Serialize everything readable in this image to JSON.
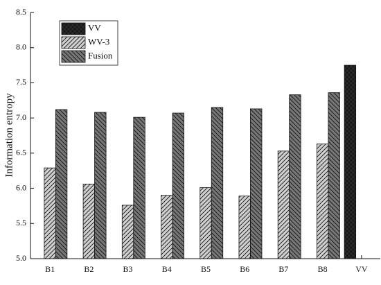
{
  "chart_data": {
    "type": "bar",
    "y_label": "Information entropy",
    "categories": [
      "B1",
      "B2",
      "B3",
      "B4",
      "B5",
      "B6",
      "B7",
      "B8",
      "VV"
    ],
    "series": [
      {
        "name": "VV",
        "color": "#2a2a2a",
        "values": [
          null,
          null,
          null,
          null,
          null,
          null,
          null,
          null,
          7.75
        ]
      },
      {
        "name": "WV-3",
        "color": "#cfcfcf",
        "values": [
          6.29,
          6.06,
          5.76,
          5.9,
          6.01,
          5.89,
          6.53,
          6.63,
          null
        ]
      },
      {
        "name": "Fusion",
        "color": "#777777",
        "values": [
          7.12,
          7.08,
          7.01,
          7.07,
          7.15,
          7.13,
          7.33,
          7.36,
          null
        ]
      }
    ],
    "ylim": [
      5.0,
      8.5
    ],
    "yticks": [
      {
        "value": 5.0,
        "label": "5.0"
      },
      5.5,
      {
        "value": 6.0,
        "label": "6.0"
      },
      6.5,
      {
        "value": 7.0,
        "label": "7.0"
      },
      7.5,
      {
        "value": 8.0,
        "label": "8.0"
      },
      8.5
    ],
    "legend": "upper left"
  }
}
